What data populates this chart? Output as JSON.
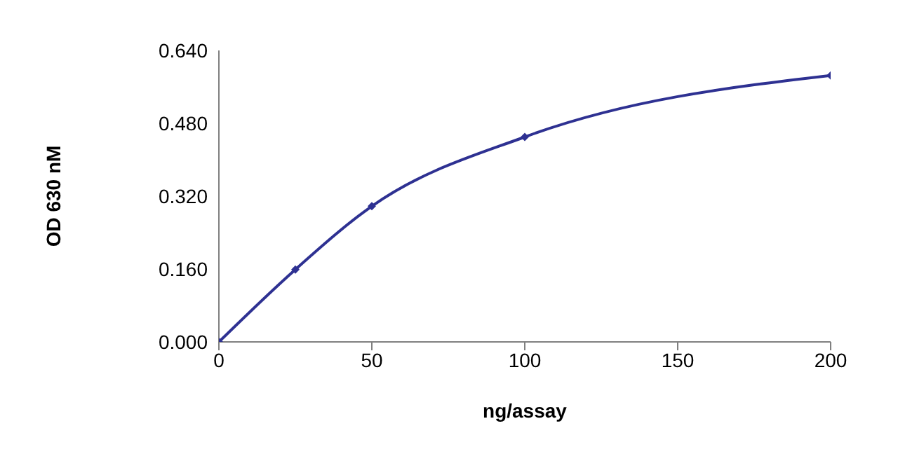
{
  "chart_data": {
    "type": "line",
    "xlabel": "ng/assay",
    "ylabel": "OD 630 nM",
    "x": [
      0,
      25,
      50,
      100,
      200
    ],
    "series": [
      {
        "color": "#2e3192",
        "values": [
          0,
          0.159,
          0.298,
          0.45,
          0.585
        ]
      }
    ],
    "xlim": [
      0,
      200
    ],
    "xticks": [
      0,
      50,
      100,
      150,
      200
    ],
    "ylim": [
      0,
      0.64
    ],
    "yticks": [
      {
        "value": 0,
        "label": "0.000"
      },
      {
        "value": 0.16,
        "label": "0.160"
      },
      {
        "value": 0.32,
        "label": "0.320"
      },
      {
        "value": 0.48,
        "label": "0.480"
      },
      {
        "value": 0.64,
        "label": "0.640"
      }
    ],
    "grid": false,
    "legend": false,
    "marker": "diamond",
    "line_style": "solid"
  }
}
